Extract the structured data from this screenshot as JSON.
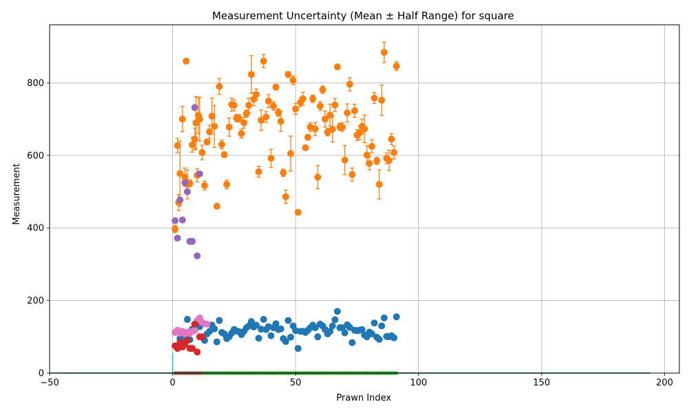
{
  "chart_data": {
    "type": "scatter",
    "title": "Measurement Uncertainty (Mean ± Half Range) for square",
    "xlabel": "Prawn Index",
    "ylabel": "Measurement",
    "xlim": [
      -50,
      206
    ],
    "ylim": [
      0,
      960
    ],
    "xticks": [
      -50,
      0,
      50,
      100,
      150,
      200
    ],
    "yticks": [
      0,
      200,
      400,
      600,
      800
    ],
    "grid": true,
    "legend": "none",
    "errorbar_color": "#ff7f0e",
    "series": [
      {
        "color": "#ff7f0e",
        "points": [
          [
            1,
            397,
            10
          ],
          [
            2,
            627,
            20
          ],
          [
            2.5,
            470,
            22
          ],
          [
            3,
            550,
            90
          ],
          [
            4,
            700,
            35
          ],
          [
            5,
            540,
            25
          ],
          [
            5.5,
            860,
            0
          ],
          [
            6,
            520,
            40
          ],
          [
            7,
            523,
            10
          ],
          [
            8,
            629,
            20
          ],
          [
            9,
            645,
            30
          ],
          [
            9.5,
            690,
            72
          ],
          [
            10,
            545,
            18
          ],
          [
            10.5,
            710,
            50
          ],
          [
            11,
            700,
            60
          ],
          [
            12,
            608,
            20
          ],
          [
            13,
            517,
            12
          ],
          [
            14,
            637,
            8
          ],
          [
            15,
            665,
            18
          ],
          [
            16,
            708,
            50
          ],
          [
            17,
            680,
            58
          ],
          [
            18,
            460,
            0
          ],
          [
            19,
            790,
            22
          ],
          [
            20,
            630,
            12
          ],
          [
            21,
            602,
            8
          ],
          [
            22,
            520,
            12
          ],
          [
            23,
            678,
            25
          ],
          [
            24,
            740,
            18
          ],
          [
            25,
            738,
            15
          ],
          [
            26,
            703,
            10
          ],
          [
            27,
            702,
            10
          ],
          [
            28,
            660,
            12
          ],
          [
            29,
            690,
            15
          ],
          [
            30,
            715,
            10
          ],
          [
            31,
            738,
            20
          ],
          [
            32,
            823,
            52
          ],
          [
            33,
            755,
            18
          ],
          [
            34,
            768,
            15
          ],
          [
            35,
            555,
            15
          ],
          [
            36,
            697,
            28
          ],
          [
            37,
            860,
            18
          ],
          [
            38,
            706,
            15
          ],
          [
            39,
            750,
            18
          ],
          [
            40,
            592,
            25
          ],
          [
            41,
            736,
            12
          ],
          [
            42,
            788,
            8
          ],
          [
            43,
            718,
            10
          ],
          [
            44,
            694,
            28
          ],
          [
            45,
            552,
            10
          ],
          [
            46,
            486,
            18
          ],
          [
            47,
            823,
            8
          ],
          [
            48,
            605,
            48
          ],
          [
            49,
            807,
            12
          ],
          [
            50,
            728,
            15
          ],
          [
            51,
            443,
            0
          ],
          [
            52,
            746,
            12
          ],
          [
            53,
            756,
            18
          ],
          [
            54,
            621,
            0
          ],
          [
            55,
            650,
            8
          ],
          [
            56,
            678,
            12
          ],
          [
            57,
            756,
            10
          ],
          [
            58,
            673,
            18
          ],
          [
            59,
            540,
            32
          ],
          [
            60,
            736,
            12
          ],
          [
            61,
            781,
            10
          ],
          [
            62,
            700,
            22
          ],
          [
            63,
            664,
            10
          ],
          [
            64,
            711,
            30
          ],
          [
            65,
            672,
            35
          ],
          [
            66,
            739,
            18
          ],
          [
            67,
            844,
            0
          ],
          [
            68,
            679,
            10
          ],
          [
            69,
            678,
            12
          ],
          [
            70,
            587,
            40
          ],
          [
            71,
            717,
            25
          ],
          [
            72,
            796,
            18
          ],
          [
            73,
            547,
            18
          ],
          [
            74,
            723,
            18
          ],
          [
            75,
            656,
            15
          ],
          [
            76,
            662,
            18
          ],
          [
            77,
            680,
            20
          ],
          [
            78,
            673,
            38
          ],
          [
            79,
            601,
            25
          ],
          [
            80,
            578,
            18
          ],
          [
            81,
            625,
            18
          ],
          [
            82,
            758,
            15
          ],
          [
            83,
            585,
            10
          ],
          [
            84,
            520,
            40
          ],
          [
            85,
            752,
            42
          ],
          [
            86,
            884,
            28
          ],
          [
            87,
            592,
            15
          ],
          [
            88,
            586,
            28
          ],
          [
            89,
            645,
            15
          ],
          [
            90,
            608,
            18
          ],
          [
            91,
            846,
            12
          ]
        ]
      },
      {
        "color": "#1f77b4",
        "points": [
          [
            3,
            95,
            5
          ],
          [
            4,
            85,
            3
          ],
          [
            5,
            100,
            3
          ],
          [
            6,
            148,
            8
          ],
          [
            7,
            92,
            3
          ],
          [
            8,
            121,
            5
          ],
          [
            9,
            120,
            4
          ],
          [
            10,
            140,
            5
          ],
          [
            11,
            128,
            8
          ],
          [
            12,
            99,
            5
          ],
          [
            13,
            90,
            3
          ],
          [
            14,
            108,
            3
          ],
          [
            15,
            115,
            3
          ],
          [
            16,
            132,
            8
          ],
          [
            17,
            122,
            3
          ],
          [
            18,
            86,
            3
          ],
          [
            19,
            145,
            8
          ],
          [
            20,
            112,
            3
          ],
          [
            21,
            108,
            3
          ],
          [
            22,
            95,
            3
          ],
          [
            23,
            100,
            3
          ],
          [
            24,
            110,
            3
          ],
          [
            25,
            120,
            3
          ],
          [
            26,
            116,
            3
          ],
          [
            27,
            114,
            3
          ],
          [
            28,
            106,
            3
          ],
          [
            29,
            115,
            3
          ],
          [
            30,
            125,
            3
          ],
          [
            31,
            130,
            3
          ],
          [
            32,
            142,
            5
          ],
          [
            33,
            127,
            3
          ],
          [
            34,
            132,
            3
          ],
          [
            35,
            96,
            3
          ],
          [
            36,
            121,
            3
          ],
          [
            37,
            148,
            3
          ],
          [
            38,
            120,
            3
          ],
          [
            39,
            128,
            3
          ],
          [
            40,
            103,
            3
          ],
          [
            41,
            125,
            3
          ],
          [
            42,
            136,
            3
          ],
          [
            43,
            120,
            3
          ],
          [
            44,
            122,
            3
          ],
          [
            45,
            95,
            3
          ],
          [
            46,
            87,
            5
          ],
          [
            47,
            145,
            5
          ],
          [
            48,
            99,
            3
          ],
          [
            49,
            130,
            3
          ],
          [
            50,
            117,
            3
          ],
          [
            51,
            68,
            3
          ],
          [
            52,
            115,
            3
          ],
          [
            53,
            115,
            3
          ],
          [
            54,
            112,
            3
          ],
          [
            55,
            118,
            3
          ],
          [
            56,
            125,
            3
          ],
          [
            57,
            132,
            3
          ],
          [
            58,
            125,
            3
          ],
          [
            59,
            100,
            8
          ],
          [
            60,
            135,
            3
          ],
          [
            61,
            130,
            3
          ],
          [
            62,
            120,
            3
          ],
          [
            63,
            108,
            3
          ],
          [
            64,
            115,
            3
          ],
          [
            65,
            130,
            3
          ],
          [
            66,
            147,
            3
          ],
          [
            67,
            170,
            3
          ],
          [
            68,
            125,
            3
          ],
          [
            69,
            125,
            3
          ],
          [
            70,
            111,
            8
          ],
          [
            71,
            133,
            5
          ],
          [
            72,
            126,
            3
          ],
          [
            73,
            84,
            5
          ],
          [
            74,
            118,
            3
          ],
          [
            75,
            117,
            3
          ],
          [
            76,
            118,
            3
          ],
          [
            77,
            120,
            3
          ],
          [
            78,
            105,
            3
          ],
          [
            79,
            100,
            3
          ],
          [
            80,
            113,
            3
          ],
          [
            81,
            108,
            3
          ],
          [
            82,
            138,
            3
          ],
          [
            83,
            99,
            3
          ],
          [
            84,
            93,
            3
          ],
          [
            85,
            130,
            3
          ],
          [
            86,
            152,
            3
          ],
          [
            87,
            101,
            3
          ],
          [
            88,
            100,
            3
          ],
          [
            89,
            103,
            3
          ],
          [
            90,
            97,
            3
          ],
          [
            91,
            155,
            3
          ]
        ]
      },
      {
        "color": "#9467bd",
        "points": [
          [
            1,
            420,
            0
          ],
          [
            2,
            372,
            0
          ],
          [
            3,
            477,
            0
          ],
          [
            4,
            422,
            0
          ],
          [
            5,
            525,
            0
          ],
          [
            6,
            500,
            0
          ],
          [
            7,
            363,
            0
          ],
          [
            8,
            363,
            0
          ],
          [
            9,
            732,
            0
          ],
          [
            10,
            323,
            0
          ],
          [
            11,
            549,
            0
          ]
        ]
      },
      {
        "color": "#e377c2",
        "points": [
          [
            1,
            112,
            0
          ],
          [
            2,
            118,
            0
          ],
          [
            3,
            110,
            0
          ],
          [
            4,
            115,
            0
          ],
          [
            5,
            108,
            0
          ],
          [
            6,
            113,
            0
          ],
          [
            7,
            110,
            0
          ],
          [
            8,
            115,
            0
          ],
          [
            9,
            118,
            0
          ],
          [
            10,
            145,
            0
          ],
          [
            11,
            152,
            0
          ],
          [
            12,
            140,
            0
          ],
          [
            13,
            136,
            0
          ],
          [
            14,
            135,
            0
          ]
        ]
      },
      {
        "color": "#d62728",
        "points": [
          [
            1,
            75,
            0
          ],
          [
            2,
            68,
            0
          ],
          [
            3,
            85,
            0
          ],
          [
            4,
            72,
            0
          ],
          [
            5,
            80,
            0
          ],
          [
            6,
            90,
            0
          ],
          [
            7,
            68,
            0
          ],
          [
            8,
            68,
            0
          ],
          [
            9,
            135,
            0
          ],
          [
            10,
            58,
            0
          ],
          [
            11,
            100,
            0
          ],
          [
            12,
            100,
            0
          ]
        ]
      },
      {
        "color": "#2ca02c",
        "points_range": [
          1,
          91,
          0
        ]
      },
      {
        "color": "#8c564b",
        "points_range": [
          1,
          12,
          0
        ]
      }
    ],
    "baselines": [
      {
        "color": "#1f77b4",
        "x": [
          -50,
          194
        ],
        "y": 0
      },
      {
        "color": "#2ca02c",
        "x": [
          -45,
          194
        ],
        "y": 0
      },
      {
        "color": "#17becf",
        "x": [
          0,
          0
        ],
        "y": [
          0,
          55
        ]
      }
    ]
  }
}
